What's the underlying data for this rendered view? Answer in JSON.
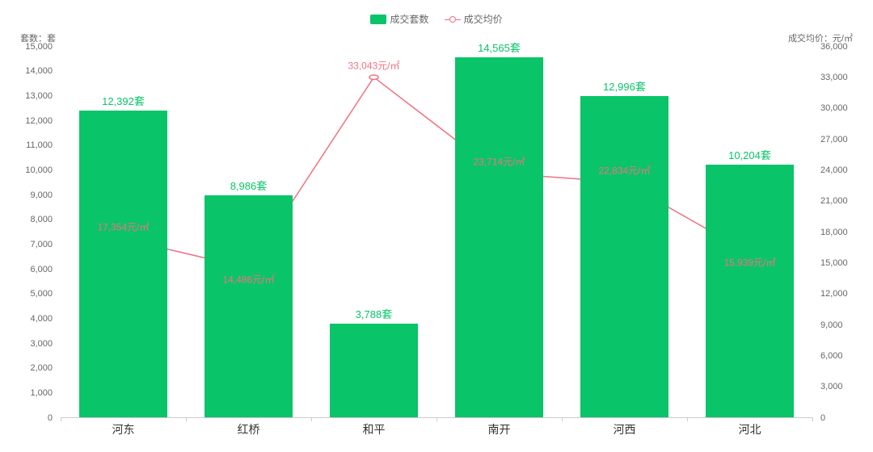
{
  "chart": {
    "type": "combo_bar_line",
    "background_color": "#ffffff",
    "legend": {
      "items": [
        {
          "label": "成交套数",
          "type": "bar",
          "color": "#0ac469"
        },
        {
          "label": "成交均价",
          "type": "line",
          "color": "#f17182"
        }
      ]
    },
    "categories": [
      "河东",
      "红桥",
      "和平",
      "南开",
      "河西",
      "河北"
    ],
    "y_axis_left": {
      "title": "套数：套",
      "min": 0,
      "max": 15000,
      "step": 1000,
      "title_fontsize": 11,
      "label_fontsize": 11,
      "label_color": "#666666"
    },
    "y_axis_right": {
      "title": "成交均价：元/㎡",
      "min": 0,
      "max": 36000,
      "step": 3000,
      "title_fontsize": 11,
      "label_fontsize": 11,
      "label_color": "#666666"
    },
    "bar_series": {
      "name": "成交套数",
      "color": "#0ac469",
      "bar_width": 0.7,
      "values": [
        12392,
        8986,
        3788,
        14565,
        12996,
        10204
      ],
      "data_labels": [
        "12,392套",
        "8,986套",
        "3,788套",
        "14,565套",
        "12,996套",
        "10,204套"
      ],
      "label_color": "#0ac469",
      "label_fontsize": 13
    },
    "line_series": {
      "name": "成交均价",
      "color": "#f17182",
      "line_width": 1.5,
      "marker_style": "circle",
      "marker_size": 7,
      "marker_fill": "#ffffff",
      "marker_stroke": "#f17182",
      "values": [
        17354,
        14486,
        33043,
        23714,
        22834,
        15939
      ],
      "data_labels": [
        "17,354元/㎡",
        "14,486元/㎡",
        "33,043元/㎡",
        "23,714元/㎡",
        "22,834元/㎡",
        "15,939元/㎡"
      ],
      "label_color": "#f17182",
      "label_fontsize": 12,
      "label_offsets_y": [
        -14,
        14,
        -14,
        -14,
        -14,
        12
      ]
    },
    "x_axis": {
      "label_fontsize": 14,
      "label_color": "#333333",
      "axis_color": "#cccccc"
    }
  }
}
